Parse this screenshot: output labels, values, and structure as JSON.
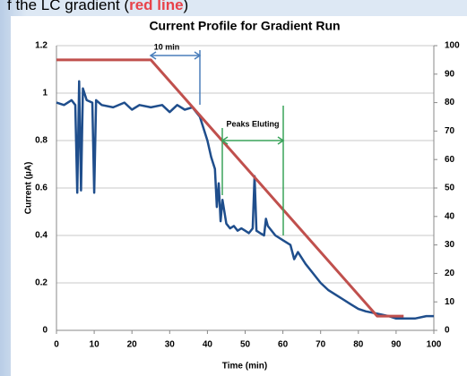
{
  "caption": {
    "before": "f the LC gradient (",
    "highlight": "red line",
    "after": ")"
  },
  "chart_data": {
    "type": "line",
    "title": "Current Profile for Gradient Run",
    "x_label": "Time (min)",
    "y_label": "Current (µA)",
    "xlim": [
      0,
      100
    ],
    "xticks": [
      0,
      10,
      20,
      30,
      40,
      50,
      60,
      70,
      80,
      90,
      100
    ],
    "ylim": [
      0,
      1.2
    ],
    "yticks": [
      0,
      0.2,
      0.4,
      0.6,
      0.8,
      1,
      1.2
    ],
    "y2lim": [
      0,
      100
    ],
    "y2ticks": [
      0,
      10,
      20,
      30,
      40,
      50,
      60,
      70,
      80,
      90,
      100
    ],
    "grid": true,
    "annotations": [
      "10 min",
      "Peaks Eluting"
    ],
    "series": [
      {
        "color": "#1f4e8c",
        "x": [
          0,
          2,
          4,
          5,
          5.5,
          6,
          6.5,
          7,
          8,
          9.5,
          10,
          10.5,
          12,
          15,
          18,
          20,
          22,
          25,
          28,
          30,
          32,
          34,
          36,
          38,
          39,
          40,
          41,
          42,
          42.5,
          43,
          43.5,
          44,
          45,
          46,
          47,
          48,
          49,
          50,
          51,
          52,
          52.5,
          53,
          54,
          55,
          55.5,
          56,
          58,
          60,
          62,
          63,
          64,
          66,
          68,
          70,
          72,
          75,
          78,
          80,
          82,
          85,
          88,
          90,
          92,
          95,
          98,
          100
        ],
        "values": [
          0.96,
          0.95,
          0.97,
          0.95,
          0.58,
          1.05,
          0.59,
          1.02,
          0.97,
          0.96,
          0.58,
          0.97,
          0.95,
          0.94,
          0.96,
          0.93,
          0.95,
          0.94,
          0.95,
          0.92,
          0.95,
          0.93,
          0.94,
          0.9,
          0.85,
          0.8,
          0.73,
          0.68,
          0.52,
          0.62,
          0.46,
          0.55,
          0.45,
          0.43,
          0.44,
          0.42,
          0.43,
          0.42,
          0.41,
          0.43,
          0.65,
          0.42,
          0.41,
          0.4,
          0.47,
          0.44,
          0.4,
          0.38,
          0.36,
          0.3,
          0.33,
          0.28,
          0.24,
          0.2,
          0.17,
          0.14,
          0.11,
          0.09,
          0.08,
          0.07,
          0.06,
          0.05,
          0.05,
          0.05,
          0.06,
          0.06
        ]
      },
      {
        "color": "#c0504d",
        "axis": "y2",
        "x": [
          0,
          25,
          85,
          92
        ],
        "values": [
          95,
          95,
          5,
          5
        ]
      }
    ]
  }
}
